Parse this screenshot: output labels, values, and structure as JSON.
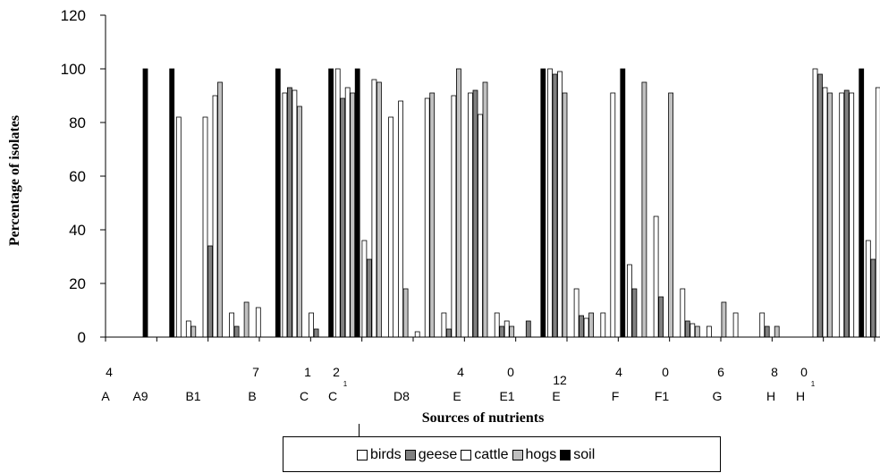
{
  "chart_data": {
    "type": "bar",
    "title": "",
    "xlabel": "Sources of nutrients",
    "ylabel": "Percentage of isolates",
    "ylim": [
      0,
      120
    ],
    "yticks": [
      "0",
      "20",
      "40",
      "60",
      "80",
      "100",
      "120"
    ],
    "grid": false,
    "legend_position": "bottom",
    "category_labels": [
      {
        "num": "4",
        "letter": "A"
      },
      {
        "num": "",
        "letter": "A9"
      },
      {
        "num": "",
        "letter": "B1"
      },
      {
        "num": "7",
        "letter": "B"
      },
      {
        "num": "1",
        "letter": "C"
      },
      {
        "num": "2",
        "letter": "C",
        "sup": "1"
      },
      {
        "num": "",
        "letter": "D8"
      },
      {
        "num": "4",
        "letter": "E"
      },
      {
        "num": "0",
        "letter": "E1"
      },
      {
        "num": "12",
        "letter": "E"
      },
      {
        "num": "4",
        "letter": "F"
      },
      {
        "num": "0",
        "letter": "F1"
      },
      {
        "num": "6",
        "letter": "G"
      },
      {
        "num": "8",
        "letter": "H"
      },
      {
        "num": "0",
        "letter": "H",
        "sup": "1"
      }
    ],
    "series": [
      {
        "name": "birds",
        "color": "#ffffff",
        "values": [
          0,
          0,
          82,
          82,
          9,
          11,
          91,
          9,
          100,
          36,
          82,
          2,
          9,
          91,
          9,
          0,
          100,
          18,
          9,
          27,
          45,
          18,
          4,
          9,
          9,
          0,
          100,
          91,
          36
        ]
      },
      {
        "name": "geese",
        "color": "#808080",
        "values": [
          0,
          0,
          0,
          34,
          4,
          0,
          93,
          3,
          89,
          29,
          0,
          0,
          3,
          92,
          4,
          6,
          98,
          8,
          0,
          18,
          15,
          6,
          0,
          0,
          4,
          0,
          98,
          92,
          29
        ]
      },
      {
        "name": "cattle",
        "color": "#ffffff",
        "values": [
          0,
          0,
          6,
          90,
          0,
          0,
          92,
          0,
          93,
          96,
          88,
          89,
          90,
          83,
          6,
          0,
          99,
          7,
          91,
          0,
          0,
          5,
          0,
          0,
          0,
          0,
          93,
          91,
          93
        ]
      },
      {
        "name": "hogs",
        "color": "#c0c0c0",
        "values": [
          0,
          0,
          4,
          95,
          13,
          0,
          86,
          0,
          91,
          95,
          18,
          91,
          100,
          95,
          4,
          0,
          91,
          9,
          0,
          95,
          91,
          4,
          13,
          0,
          4,
          0,
          91,
          0,
          95
        ]
      },
      {
        "name": "soil",
        "color": "#000000",
        "values": [
          100,
          100,
          0,
          0,
          0,
          100,
          0,
          100,
          100,
          0,
          0,
          0,
          0,
          0,
          0,
          100,
          0,
          0,
          100,
          0,
          0,
          0,
          0,
          0,
          0,
          0,
          0,
          100,
          0
        ]
      }
    ],
    "legend": [
      {
        "name": "birds",
        "color": "#ffffff"
      },
      {
        "name": "geese",
        "color": "#808080"
      },
      {
        "name": "cattle",
        "color": "#ffffff"
      },
      {
        "name": "hogs",
        "color": "#c0c0c0"
      },
      {
        "name": "soil",
        "color": "#000000"
      }
    ]
  }
}
